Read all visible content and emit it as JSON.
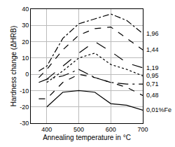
{
  "chart_data": {
    "type": "line",
    "x_label": "Annealing temperature in °C",
    "y_label": "Hardness change (ΔHRB)",
    "x": [
      375,
      400,
      450,
      500,
      550,
      600,
      650,
      700
    ],
    "series": [
      {
        "name": "1,96",
        "color": "#000000",
        "line_style": "dashdot",
        "values": [
          2,
          5,
          22,
          31,
          34,
          37,
          33,
          25
        ]
      },
      {
        "name": "1,44",
        "color": "#000000",
        "line_style": "dash",
        "values": [
          -2,
          3,
          15,
          24,
          28,
          29,
          22,
          15
        ]
      },
      {
        "name": "1,19",
        "color": "#000000",
        "line_style": "longdash",
        "values": [
          null,
          -3,
          5,
          13,
          20,
          14,
          7,
          4
        ]
      },
      {
        "name": "0,95",
        "color": "#000000",
        "line_style": "dot",
        "values": [
          null,
          -5,
          2,
          10,
          13,
          6,
          3,
          -1
        ]
      },
      {
        "name": "0,71",
        "color": "#000000",
        "line_style": "longdashdot",
        "values": [
          -5,
          -3,
          -1,
          3,
          -2,
          -5,
          -6,
          -6
        ]
      },
      {
        "name": "0,48",
        "color": "#000000",
        "line_style": "dash",
        "values": [
          -15,
          -15,
          -5,
          0,
          -2,
          -5,
          -8,
          -13
        ]
      },
      {
        "name": "0,01%Fe",
        "color": "#000000",
        "line_style": "solid",
        "values": [
          null,
          -20,
          -11,
          -10,
          -11,
          -18,
          -19,
          -22
        ]
      }
    ],
    "xlim": [
      350,
      700
    ],
    "xticks": [
      400,
      500,
      600,
      700
    ],
    "ylim": [
      -30,
      40
    ],
    "yticks": [
      -30,
      -20,
      -10,
      0,
      10,
      20,
      30,
      40
    ],
    "grid": true
  }
}
